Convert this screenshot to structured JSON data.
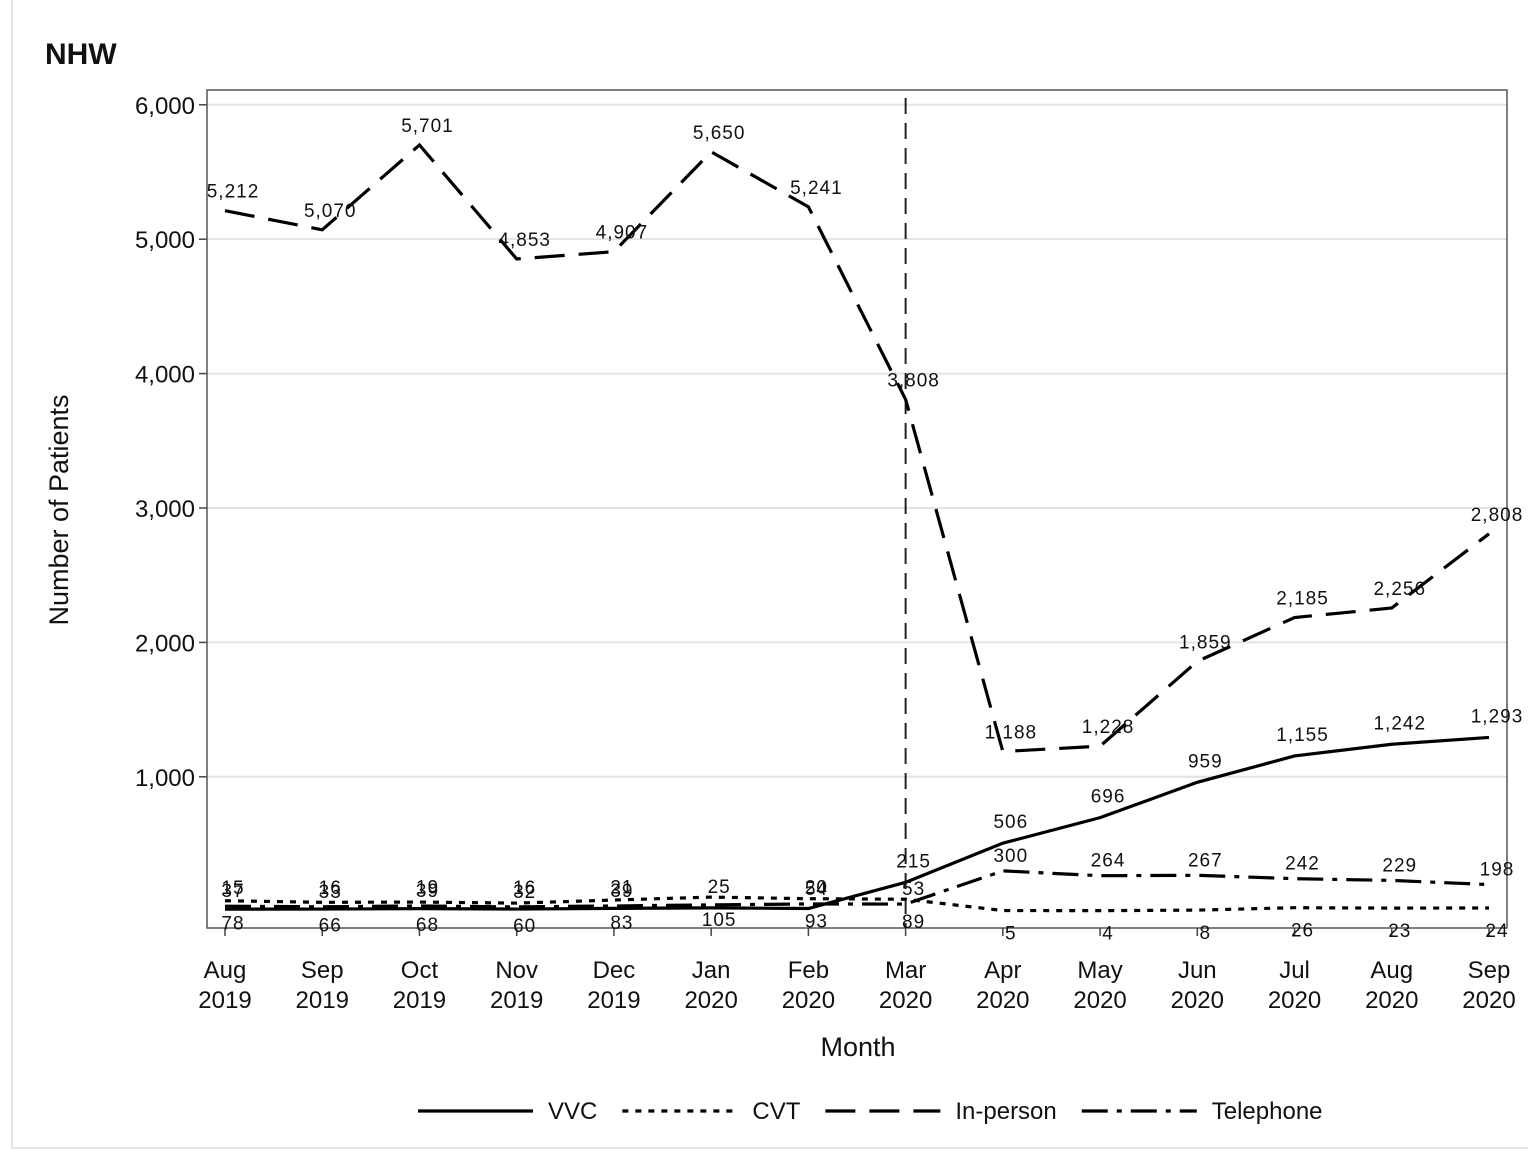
{
  "chart_data": {
    "type": "line",
    "title": "NHW",
    "x_label": "Month",
    "y_label": "Number of Patients",
    "categories": [
      "Aug 2019",
      "Sep 2019",
      "Oct 2019",
      "Nov 2019",
      "Dec 2019",
      "Jan 2020",
      "Feb 2020",
      "Mar 2020",
      "Apr 2020",
      "May 2020",
      "Jun 2020",
      "Jul 2020",
      "Aug 2020",
      "Sep 2020"
    ],
    "series": [
      {
        "name": "VVC",
        "color": "#000000",
        "dash": "solid",
        "values": [
          15,
          16,
          19,
          16,
          21,
          25,
          20,
          215,
          506,
          696,
          959,
          1155,
          1242,
          1293
        ],
        "value_labels": [
          "15",
          "16",
          "19",
          "16",
          "21",
          "25",
          "20",
          "215",
          "506",
          "696",
          "959",
          "1,155",
          "1,242",
          "1,293"
        ]
      },
      {
        "name": "CVT",
        "color": "#000000",
        "dash": "dotted",
        "values": [
          78,
          66,
          68,
          60,
          83,
          105,
          93,
          89,
          5,
          4,
          8,
          26,
          23,
          24
        ]
      },
      {
        "name": "In-person",
        "color": "#000000",
        "dash": "dashed",
        "values": [
          5212,
          5070,
          5701,
          4853,
          4907,
          5650,
          5241,
          3808,
          1188,
          1228,
          1859,
          2185,
          2256,
          2808
        ],
        "value_labels": [
          "5,212",
          "5,070",
          "5,701",
          "4,853",
          "4,907",
          "5,650",
          "5,241",
          "3,808",
          "1,188",
          "1,228",
          "1,859",
          "2,185",
          "2,256",
          "2,808"
        ]
      },
      {
        "name": "Telephone",
        "color": "#000000",
        "dash": "dashdot",
        "values": [
          37,
          33,
          39,
          32,
          39,
          47,
          54,
          53,
          300,
          264,
          267,
          242,
          229,
          198
        ],
        "value_labels": [
          "37",
          "33",
          "39",
          "32",
          "39",
          null,
          "54",
          "53",
          "300",
          "264",
          "267",
          "242",
          "229",
          "198"
        ]
      }
    ],
    "vline_at": "Mar 2020",
    "ylim": [
      -125,
      6110
    ],
    "yticks": [
      {
        "value": 1000,
        "label": "1,000"
      },
      {
        "value": 2000,
        "label": "2,000"
      },
      {
        "value": 3000,
        "label": "3,000"
      },
      {
        "value": 4000,
        "label": "4,000"
      },
      {
        "value": 5000,
        "label": "5,000"
      },
      {
        "value": 6000,
        "label": "6,000"
      }
    ],
    "grid": true,
    "legend": "bottom"
  }
}
